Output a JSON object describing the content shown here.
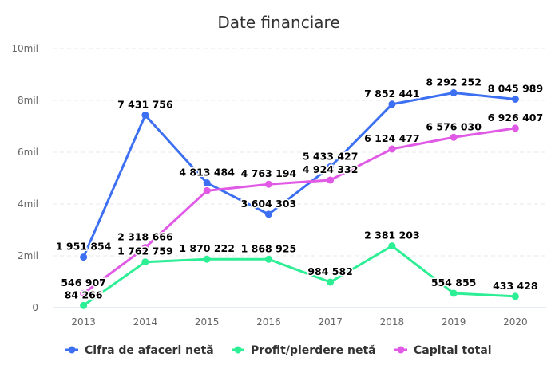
{
  "chart_data": {
    "type": "line",
    "title": "Date financiare",
    "xlabel": "",
    "ylabel": "",
    "categories": [
      "2013",
      "2014",
      "2015",
      "2016",
      "2017",
      "2018",
      "2019",
      "2020"
    ],
    "ylim": [
      0,
      10000000
    ],
    "yticks": [
      {
        "value": 0,
        "label": "0"
      },
      {
        "value": 2000000,
        "label": "2mil"
      },
      {
        "value": 4000000,
        "label": "4mil"
      },
      {
        "value": 6000000,
        "label": "6mil"
      },
      {
        "value": 8000000,
        "label": "8mil"
      },
      {
        "value": 10000000,
        "label": "10mil"
      }
    ],
    "grid": true,
    "legend_position": "bottom",
    "series": [
      {
        "name": "Cifra de afaceri netă",
        "color": "#3d6ff2",
        "values": [
          1951854,
          7431756,
          4813484,
          3604303,
          5433427,
          7852441,
          8292252,
          8045989
        ],
        "labels": [
          "1 951 854",
          "7 431 756",
          "4 813 484",
          "3 604 303",
          "5 433 427",
          "7 852 441",
          "8 292 252",
          "8 045 989"
        ]
      },
      {
        "name": "Profit/pierdere netă",
        "color": "#2cee94",
        "values": [
          84266,
          1762759,
          1870222,
          1868925,
          984582,
          2381203,
          554855,
          433428
        ],
        "labels": [
          "84 266",
          "1 762 759",
          "1 870 222",
          "1 868 925",
          "984 582",
          "2 381 203",
          "554 855",
          "433 428"
        ]
      },
      {
        "name": "Capital total",
        "color": "#e15ae6",
        "values": [
          546907,
          2318666,
          4513000,
          4763194,
          4924332,
          6124477,
          6576030,
          6926407
        ],
        "labels": [
          "546 907",
          "2 318 666",
          "",
          "4 763 194",
          "4 924 332",
          "6 124 477",
          "6 576 030",
          "6 926 407"
        ]
      }
    ]
  }
}
